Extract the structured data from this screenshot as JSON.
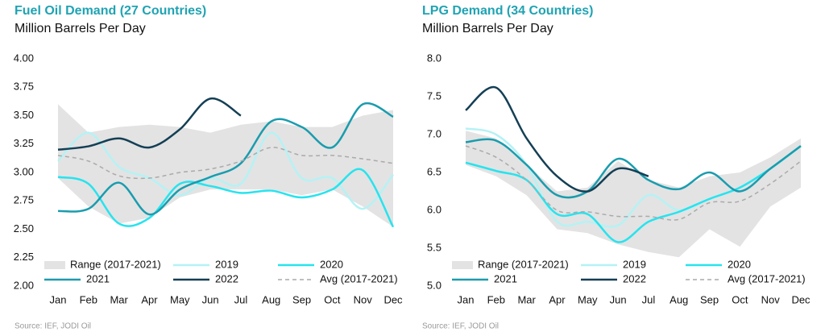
{
  "chart_data": [
    {
      "type": "line",
      "title": "Fuel Oil Demand (27 Countries)",
      "subtitle": "Million Barrels Per Day",
      "source": "Source: IEF, JODI Oil",
      "categories": [
        "Jan",
        "Feb",
        "Mar",
        "Apr",
        "May",
        "Jun",
        "Jul",
        "Aug",
        "Sep",
        "Oct",
        "Nov",
        "Dec"
      ],
      "range": {
        "name": "Range (2017-2021)",
        "color": "#e3e3e3",
        "low": [
          2.95,
          2.7,
          2.55,
          2.6,
          2.78,
          2.85,
          2.85,
          2.85,
          2.8,
          2.85,
          2.7,
          2.52
        ],
        "high": [
          3.6,
          3.35,
          3.4,
          3.42,
          3.4,
          3.35,
          3.42,
          3.45,
          3.4,
          3.4,
          3.5,
          3.55
        ]
      },
      "series": [
        {
          "name": "2019",
          "color": "#b5f2f5",
          "values": [
            3.1,
            3.35,
            3.05,
            2.95,
            2.8,
            2.95,
            2.9,
            3.35,
            2.95,
            2.95,
            2.68,
            2.98
          ]
        },
        {
          "name": "2020",
          "color": "#27e3ee",
          "values": [
            2.96,
            2.9,
            2.55,
            2.6,
            2.9,
            2.88,
            2.82,
            2.84,
            2.78,
            2.85,
            3.02,
            2.52
          ]
        },
        {
          "name": "2021",
          "color": "#1a9cae",
          "values": [
            2.66,
            2.68,
            2.91,
            2.63,
            2.85,
            2.96,
            3.08,
            3.45,
            3.4,
            3.22,
            3.6,
            3.49
          ]
        },
        {
          "name": "2022",
          "color": "#143f55",
          "values": [
            3.2,
            3.23,
            3.3,
            3.22,
            3.38,
            3.65,
            3.5,
            null,
            null,
            null,
            null,
            null
          ]
        },
        {
          "name": "Avg (2017-2021)",
          "color": "#aaaaaa",
          "dashed": true,
          "values": [
            3.15,
            3.1,
            2.97,
            2.95,
            3.0,
            3.03,
            3.1,
            3.22,
            3.15,
            3.15,
            3.12,
            3.08
          ]
        }
      ],
      "ylim": [
        2.0,
        4.0
      ],
      "yticks": [
        {
          "value": 2.0,
          "label": "2.00"
        },
        {
          "value": 2.25,
          "label": "2.25"
        },
        {
          "value": 2.5,
          "label": "2.50"
        },
        {
          "value": 2.75,
          "label": "2.75"
        },
        {
          "value": 3.0,
          "label": "3.00"
        },
        {
          "value": 3.25,
          "label": "3.25"
        },
        {
          "value": 3.5,
          "label": "3.50"
        },
        {
          "value": 3.75,
          "label": "3.75"
        },
        {
          "value": 4.0,
          "label": "4.00"
        }
      ]
    },
    {
      "type": "line",
      "title": "LPG Demand (34 Countries)",
      "subtitle": "Million Barrels Per Day",
      "source": "Source: IEF, JODI Oil",
      "categories": [
        "Jan",
        "Feb",
        "Mar",
        "Apr",
        "May",
        "Jun",
        "Jul",
        "Aug",
        "Sep",
        "Oct",
        "Nov",
        "Dec"
      ],
      "range": {
        "name": "Range (2017-2021)",
        "color": "#e3e3e3",
        "low": [
          6.6,
          6.45,
          6.2,
          5.75,
          5.7,
          5.55,
          5.45,
          5.38,
          5.75,
          5.52,
          6.05,
          6.3
        ],
        "high": [
          7.05,
          6.95,
          6.6,
          6.25,
          6.3,
          6.65,
          6.4,
          6.3,
          6.45,
          6.5,
          6.7,
          6.95
        ]
      },
      "series": [
        {
          "name": "2019",
          "color": "#b5f2f5",
          "values": [
            7.08,
            7.0,
            6.6,
            5.85,
            5.85,
            5.8,
            6.2,
            6.0,
            6.15,
            6.3,
            6.55,
            6.85
          ]
        },
        {
          "name": "2020",
          "color": "#27e3ee",
          "values": [
            6.63,
            6.52,
            6.4,
            5.95,
            5.95,
            5.58,
            5.85,
            5.98,
            6.15,
            6.3,
            6.55,
            6.85
          ]
        },
        {
          "name": "2021",
          "color": "#1a9cae",
          "values": [
            6.9,
            6.92,
            6.6,
            6.2,
            6.25,
            6.68,
            6.4,
            6.28,
            6.5,
            6.25,
            6.55,
            6.85
          ]
        },
        {
          "name": "2022",
          "color": "#143f55",
          "values": [
            7.32,
            7.62,
            6.95,
            6.45,
            6.25,
            6.55,
            6.45,
            null,
            null,
            null,
            null,
            null
          ]
        },
        {
          "name": "Avg (2017-2021)",
          "color": "#aaaaaa",
          "dashed": true,
          "values": [
            6.85,
            6.7,
            6.4,
            6.0,
            5.98,
            5.92,
            5.92,
            5.88,
            6.1,
            6.12,
            6.35,
            6.65
          ]
        }
      ],
      "ylim": [
        5.0,
        8.0
      ],
      "yticks": [
        {
          "value": 5.0,
          "label": "5.0"
        },
        5.5,
        {
          "value": 6.0,
          "label": "6.0"
        },
        6.5,
        {
          "value": 7.0,
          "label": "7.0"
        },
        7.5,
        {
          "value": 8.0,
          "label": "8.0"
        }
      ]
    }
  ]
}
